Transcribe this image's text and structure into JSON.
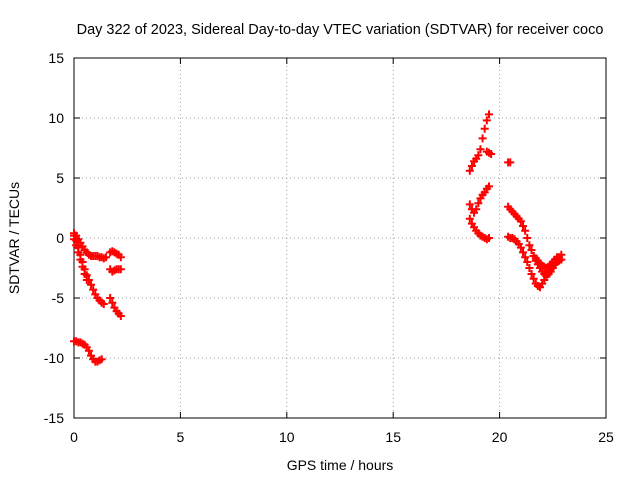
{
  "chart_data": {
    "type": "scatter",
    "title": "Day 322 of 2023, Sidereal Day-to-day VTEC variation (SDTVAR) for receiver coco",
    "xlabel": "GPS time / hours",
    "ylabel": "SDTVAR / TECUs",
    "xlim": [
      0,
      25
    ],
    "ylim": [
      -15,
      15
    ],
    "xticks": [
      0,
      5,
      10,
      15,
      20,
      25
    ],
    "yticks": [
      -15,
      -10,
      -5,
      0,
      5,
      10,
      15
    ],
    "grid": true,
    "marker": "+",
    "color": "#ff0000",
    "series": [
      {
        "name": "SDTVAR",
        "segments": [
          [
            [
              0.0,
              0.4
            ],
            [
              0.1,
              0.2
            ],
            [
              0.2,
              -0.1
            ],
            [
              0.3,
              -0.4
            ],
            [
              0.4,
              -0.7
            ],
            [
              0.5,
              -1.0
            ],
            [
              0.6,
              -1.2
            ],
            [
              0.7,
              -1.4
            ],
            [
              0.8,
              -1.5
            ],
            [
              0.9,
              -1.5
            ],
            [
              1.0,
              -1.5
            ],
            [
              1.1,
              -1.5
            ],
            [
              1.2,
              -1.6
            ],
            [
              1.3,
              -1.6
            ],
            [
              1.4,
              -1.7
            ],
            [
              1.5,
              -1.6
            ]
          ],
          [
            [
              0.0,
              0.2
            ],
            [
              0.1,
              -0.2
            ],
            [
              0.2,
              -0.8
            ],
            [
              0.3,
              -1.4
            ],
            [
              0.4,
              -2.0
            ],
            [
              0.5,
              -2.6
            ],
            [
              0.6,
              -3.1
            ],
            [
              0.7,
              -3.5
            ],
            [
              0.8,
              -3.9
            ],
            [
              0.9,
              -4.3
            ],
            [
              1.0,
              -4.7
            ],
            [
              1.1,
              -5.0
            ],
            [
              1.2,
              -5.2
            ],
            [
              1.3,
              -5.4
            ],
            [
              1.4,
              -5.5
            ]
          ],
          [
            [
              0.0,
              -0.1
            ],
            [
              0.1,
              -0.6
            ],
            [
              0.2,
              -1.2
            ],
            [
              0.3,
              -1.8
            ],
            [
              0.4,
              -2.4
            ],
            [
              0.5,
              -3.0
            ],
            [
              0.6,
              -3.5
            ]
          ],
          [
            [
              1.7,
              -1.2
            ],
            [
              1.8,
              -1.1
            ],
            [
              1.9,
              -1.2
            ],
            [
              2.0,
              -1.3
            ],
            [
              2.1,
              -1.4
            ],
            [
              2.2,
              -1.6
            ]
          ],
          [
            [
              1.7,
              -2.6
            ],
            [
              1.8,
              -2.8
            ],
            [
              1.9,
              -2.7
            ],
            [
              2.0,
              -2.6
            ],
            [
              2.1,
              -2.6
            ],
            [
              2.2,
              -2.6
            ]
          ],
          [
            [
              1.7,
              -5.0
            ],
            [
              1.8,
              -5.4
            ],
            [
              1.9,
              -5.8
            ],
            [
              2.0,
              -6.1
            ],
            [
              2.1,
              -6.3
            ],
            [
              2.2,
              -6.5
            ]
          ],
          [
            [
              0.0,
              -8.6
            ],
            [
              0.1,
              -8.6
            ],
            [
              0.2,
              -8.7
            ],
            [
              0.3,
              -8.7
            ],
            [
              0.4,
              -8.8
            ],
            [
              0.5,
              -8.9
            ],
            [
              0.6,
              -9.1
            ],
            [
              0.7,
              -9.4
            ],
            [
              0.8,
              -9.8
            ],
            [
              0.9,
              -10.1
            ],
            [
              1.0,
              -10.3
            ],
            [
              1.1,
              -10.3
            ],
            [
              1.2,
              -10.2
            ],
            [
              1.3,
              -10.1
            ]
          ],
          [
            [
              18.6,
              5.6
            ],
            [
              18.7,
              6.0
            ],
            [
              18.8,
              6.4
            ],
            [
              18.9,
              6.6
            ],
            [
              19.0,
              6.9
            ],
            [
              19.1,
              7.4
            ],
            [
              19.2,
              8.3
            ],
            [
              19.3,
              9.1
            ],
            [
              19.4,
              9.8
            ],
            [
              19.5,
              10.3
            ]
          ],
          [
            [
              19.4,
              7.2
            ],
            [
              19.5,
              7.1
            ],
            [
              19.6,
              7.0
            ]
          ],
          [
            [
              18.6,
              2.8
            ],
            [
              18.7,
              2.4
            ],
            [
              18.8,
              2.1
            ],
            [
              18.9,
              2.4
            ],
            [
              19.0,
              2.9
            ],
            [
              19.1,
              3.3
            ],
            [
              19.2,
              3.6
            ],
            [
              19.3,
              3.8
            ],
            [
              19.4,
              4.1
            ],
            [
              19.5,
              4.3
            ]
          ],
          [
            [
              18.6,
              1.6
            ],
            [
              18.7,
              1.2
            ],
            [
              18.8,
              0.9
            ],
            [
              18.9,
              0.6
            ],
            [
              19.0,
              0.4
            ],
            [
              19.1,
              0.2
            ],
            [
              19.2,
              0.1
            ],
            [
              19.3,
              0.0
            ],
            [
              19.4,
              -0.1
            ],
            [
              19.5,
              0.0
            ]
          ],
          [
            [
              20.4,
              6.3
            ],
            [
              20.5,
              6.3
            ]
          ],
          [
            [
              20.4,
              2.6
            ],
            [
              20.5,
              2.4
            ],
            [
              20.6,
              2.2
            ],
            [
              20.7,
              2.0
            ],
            [
              20.8,
              1.8
            ],
            [
              20.9,
              1.6
            ],
            [
              21.0,
              1.4
            ],
            [
              21.1,
              1.0
            ],
            [
              21.2,
              0.6
            ],
            [
              21.3,
              0.0
            ],
            [
              21.4,
              -0.6
            ],
            [
              21.5,
              -1.0
            ],
            [
              21.6,
              -1.5
            ],
            [
              21.7,
              -1.9
            ],
            [
              21.8,
              -2.2
            ],
            [
              21.9,
              -2.5
            ],
            [
              22.0,
              -2.8
            ],
            [
              22.1,
              -3.0
            ],
            [
              22.2,
              -3.1
            ],
            [
              22.3,
              -3.0
            ],
            [
              22.4,
              -2.8
            ],
            [
              22.5,
              -2.5
            ],
            [
              22.6,
              -2.2
            ],
            [
              22.7,
              -1.9
            ],
            [
              22.8,
              -1.6
            ],
            [
              22.9,
              -1.4
            ]
          ],
          [
            [
              20.4,
              0.1
            ],
            [
              20.5,
              0.0
            ],
            [
              20.6,
              0.0
            ],
            [
              20.7,
              -0.1
            ],
            [
              20.8,
              -0.3
            ],
            [
              20.9,
              -0.5
            ],
            [
              21.0,
              -0.8
            ],
            [
              21.1,
              -1.2
            ],
            [
              21.2,
              -1.6
            ],
            [
              21.3,
              -2.0
            ],
            [
              21.4,
              -2.5
            ],
            [
              21.5,
              -3.0
            ],
            [
              21.6,
              -3.4
            ],
            [
              21.7,
              -3.8
            ],
            [
              21.8,
              -4.0
            ],
            [
              21.9,
              -4.1
            ],
            [
              22.0,
              -3.8
            ],
            [
              22.1,
              -3.5
            ],
            [
              22.2,
              -3.2
            ],
            [
              22.3,
              -2.9
            ],
            [
              22.4,
              -2.6
            ],
            [
              22.5,
              -2.3
            ],
            [
              22.6,
              -2.1
            ],
            [
              22.7,
              -2.0
            ],
            [
              22.8,
              -1.9
            ],
            [
              22.9,
              -1.8
            ]
          ],
          [
            [
              21.6,
              -1.5
            ],
            [
              21.7,
              -1.7
            ],
            [
              21.8,
              -1.9
            ],
            [
              21.9,
              -2.1
            ],
            [
              22.0,
              -2.3
            ],
            [
              22.1,
              -2.4
            ],
            [
              22.2,
              -2.5
            ],
            [
              22.3,
              -2.4
            ],
            [
              22.4,
              -2.2
            ],
            [
              22.5,
              -2.0
            ],
            [
              22.6,
              -1.8
            ],
            [
              22.7,
              -1.6
            ]
          ]
        ]
      }
    ]
  }
}
